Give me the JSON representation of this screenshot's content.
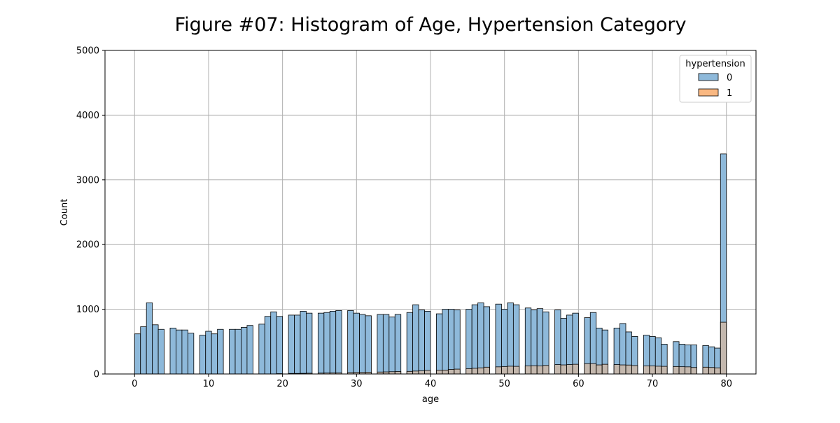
{
  "chart_data": {
    "type": "bar",
    "title": "Figure #07: Histogram of Age, Hypertension Category",
    "xlabel": "age",
    "ylabel": "Count",
    "xlim": [
      -4,
      84
    ],
    "ylim": [
      0,
      5000
    ],
    "xticks": [
      "0",
      "10",
      "20",
      "30",
      "40",
      "50",
      "60",
      "70",
      "80"
    ],
    "yticks": [
      "0",
      "1000",
      "2000",
      "3000",
      "4000",
      "5000"
    ],
    "grid": true,
    "legend": {
      "title": "hypertension",
      "placement": "top-right"
    },
    "bin_width": 0.8,
    "bins_start": [
      0.0,
      0.8,
      1.6,
      2.4,
      3.2,
      4.8,
      5.6,
      6.4,
      7.2,
      8.8,
      9.6,
      10.4,
      11.2,
      12.8,
      13.6,
      14.4,
      15.2,
      16.8,
      17.6,
      18.4,
      19.2,
      20.8,
      21.6,
      22.4,
      23.2,
      24.8,
      25.6,
      26.4,
      27.2,
      28.8,
      29.6,
      30.4,
      31.2,
      32.8,
      33.6,
      34.4,
      35.2,
      36.8,
      37.6,
      38.4,
      39.2,
      40.8,
      41.6,
      42.4,
      43.2,
      44.8,
      45.6,
      46.4,
      47.2,
      48.8,
      49.6,
      50.4,
      51.2,
      52.8,
      53.6,
      54.4,
      55.2,
      56.8,
      57.6,
      58.4,
      59.2,
      60.8,
      61.6,
      62.4,
      63.2,
      64.8,
      65.6,
      66.4,
      67.2,
      68.8,
      69.6,
      70.4,
      71.2,
      72.8,
      73.6,
      74.4,
      75.2,
      76.8,
      77.6,
      78.4,
      79.2
    ],
    "series": [
      {
        "name": "0",
        "color": "#8eb9da",
        "values": [
          620,
          730,
          1100,
          760,
          690,
          710,
          680,
          680,
          630,
          600,
          660,
          620,
          690,
          690,
          690,
          720,
          750,
          770,
          890,
          960,
          890,
          910,
          910,
          970,
          940,
          940,
          950,
          970,
          980,
          980,
          940,
          920,
          900,
          920,
          920,
          880,
          920,
          950,
          1070,
          990,
          970,
          930,
          1000,
          1000,
          990,
          1000,
          1070,
          1100,
          1040,
          1080,
          1000,
          1100,
          1070,
          1020,
          990,
          1010,
          960,
          990,
          860,
          910,
          940,
          870,
          950,
          710,
          680,
          710,
          780,
          650,
          580,
          600,
          580,
          560,
          460,
          500,
          460,
          450,
          450,
          440,
          420,
          400,
          3400
        ]
      },
      {
        "name": "1",
        "color": "#f9b882",
        "values": [
          0,
          0,
          0,
          0,
          0,
          0,
          0,
          0,
          0,
          0,
          0,
          0,
          0,
          0,
          0,
          0,
          0,
          0,
          0,
          0,
          5,
          8,
          8,
          10,
          12,
          14,
          16,
          18,
          18,
          22,
          25,
          25,
          28,
          30,
          32,
          35,
          38,
          40,
          45,
          50,
          55,
          58,
          60,
          70,
          75,
          82,
          88,
          95,
          105,
          110,
          115,
          120,
          118,
          125,
          128,
          125,
          132,
          145,
          140,
          145,
          150,
          160,
          160,
          140,
          150,
          145,
          140,
          138,
          130,
          125,
          125,
          120,
          118,
          115,
          112,
          110,
          100,
          105,
          100,
          95,
          800
        ]
      }
    ]
  }
}
